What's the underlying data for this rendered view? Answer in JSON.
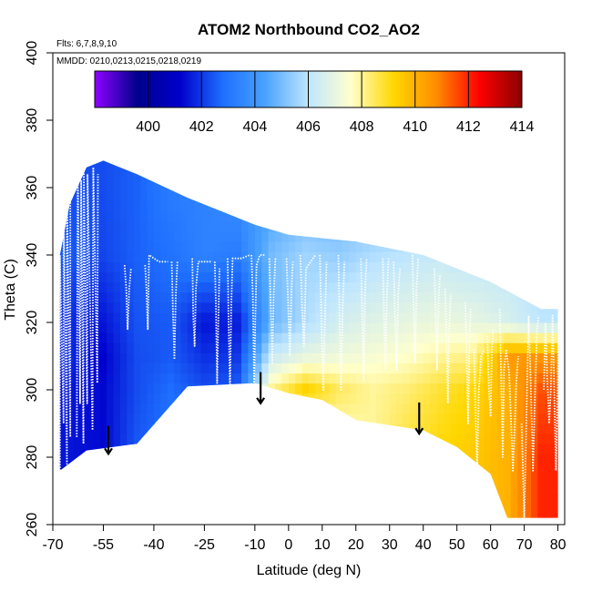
{
  "chart_data": {
    "type": "heatmap",
    "title": "ATOM2 Northbound CO2_AO2",
    "flights_label": "Flts: 6,7,8,9,10",
    "dates_label": "MMDD: 0210,0213,0215,0218,0219",
    "xlabel": "Latitude (deg N)",
    "ylabel": "Theta (C)",
    "xlim": [
      -70,
      82
    ],
    "ylim": [
      260,
      400
    ],
    "x_ticks": [
      -70,
      -55,
      -40,
      -25,
      -10,
      0,
      10,
      20,
      30,
      40,
      50,
      60,
      70,
      80
    ],
    "y_ticks": [
      260,
      280,
      300,
      320,
      340,
      360,
      380,
      400
    ],
    "colorbar": {
      "range": [
        398,
        414
      ],
      "ticks": [
        400,
        402,
        404,
        406,
        408,
        410,
        412,
        414
      ],
      "colors": [
        "#8f00ff",
        "#00008b",
        "#0000cd",
        "#1e6fff",
        "#4aa3ff",
        "#bfe6ff",
        "#ffffcc",
        "#ffd700",
        "#ff8c00",
        "#ff0000",
        "#8b0000"
      ]
    },
    "top_boundary": [
      [
        -67.9,
        340
      ],
      [
        -65,
        355
      ],
      [
        -60,
        366
      ],
      [
        -55,
        368
      ],
      [
        -45,
        364
      ],
      [
        -30,
        357
      ],
      [
        -10,
        349
      ],
      [
        0,
        346
      ],
      [
        20,
        344
      ],
      [
        40,
        340
      ],
      [
        60,
        332
      ],
      [
        75,
        324
      ],
      [
        80,
        324
      ]
    ],
    "bottom_boundary": [
      [
        -67.9,
        276
      ],
      [
        -60,
        282
      ],
      [
        -45,
        284
      ],
      [
        -30,
        301
      ],
      [
        -10,
        302
      ],
      [
        0,
        299
      ],
      [
        10,
        297
      ],
      [
        20,
        291
      ],
      [
        40,
        288
      ],
      [
        50,
        283
      ],
      [
        60,
        275
      ],
      [
        65,
        262
      ],
      [
        80,
        262
      ]
    ],
    "grid": [
      {
        "lat": -65,
        "z": [
          401.5,
          401.5,
          401.8,
          401.8,
          402.5,
          402.3
        ]
      },
      {
        "lat": -55,
        "z": [
          401.3,
          401.3,
          401.2,
          401.5,
          402.2,
          402.3
        ]
      },
      {
        "lat": -45,
        "z": [
          402.5,
          402.3,
          402.3,
          402.4,
          402.6,
          402.6
        ]
      },
      {
        "lat": -35,
        "z": [
          403.0,
          402.8,
          402.5,
          402.5,
          402.9,
          403.2
        ]
      },
      {
        "lat": -25,
        "z": [
          403.4,
          402.3,
          401.9,
          401.5,
          403.4,
          403.4
        ]
      },
      {
        "lat": -15,
        "z": [
          403.7,
          402.6,
          402.0,
          401.6,
          403.2,
          403.8
        ]
      },
      {
        "lat": -5,
        "z": [
          404.7,
          408.1,
          406.3,
          404.8,
          405.0,
          404.2
        ]
      },
      {
        "lat": 5,
        "z": [
          406.2,
          409.4,
          407.0,
          405.8,
          405.6,
          404.6
        ]
      },
      {
        "lat": 15,
        "z": [
          407.2,
          408.5,
          407.2,
          406.5,
          405.4,
          404.6
        ]
      },
      {
        "lat": 25,
        "z": [
          408.0,
          408.0,
          407.4,
          406.8,
          405.8,
          404.8
        ]
      },
      {
        "lat": 35,
        "z": [
          408.8,
          408.3,
          407.6,
          407.0,
          406.0,
          405.0
        ]
      },
      {
        "lat": 45,
        "z": [
          409.2,
          408.8,
          408.0,
          407.1,
          406.2,
          405.2
        ]
      },
      {
        "lat": 55,
        "z": [
          409.5,
          409.2,
          408.2,
          407.0,
          406.0,
          405.2
        ]
      },
      {
        "lat": 65,
        "z": [
          410.0,
          410.0,
          410.5,
          406.6,
          406.0,
          405.6
        ]
      },
      {
        "lat": 75,
        "z": [
          412.0,
          411.5,
          410.6,
          406.0,
          405.8,
          405.6
        ]
      }
    ],
    "theta_levels": [
      280,
      300,
      310,
      320,
      340,
      360
    ],
    "flight_tracks": [
      [
        [
          -67.9,
          276
        ],
        [
          -67.9,
          340
        ],
        [
          -66.8,
          290
        ],
        [
          -66.8,
          356
        ],
        [
          -65.8,
          278
        ],
        [
          -65.8,
          360
        ],
        [
          -64.8,
          286
        ],
        [
          -64.8,
          363
        ]
      ],
      [
        [
          -62.9,
          286
        ],
        [
          -62.6,
          366
        ],
        [
          -61.9,
          296
        ],
        [
          -61.6,
          362
        ],
        [
          -60.9,
          284
        ],
        [
          -60.8,
          366
        ],
        [
          -59.8,
          296
        ],
        [
          -59.7,
          364
        ],
        [
          -58.2,
          288
        ],
        [
          -58.0,
          366
        ],
        [
          -56.8,
          302
        ],
        [
          -56.6,
          364
        ]
      ],
      [
        [
          -48.7,
          337
        ],
        [
          -48.2,
          330
        ],
        [
          -47.8,
          318
        ],
        [
          -47.3,
          330
        ],
        [
          -46.8,
          336
        ]
      ],
      [
        [
          -42.6,
          337
        ],
        [
          -42.2,
          330
        ],
        [
          -41.8,
          318
        ],
        [
          -41.4,
          340
        ],
        [
          -38.5,
          338
        ],
        [
          -35.8,
          338
        ]
      ],
      [
        [
          -34.7,
          338
        ],
        [
          -34.3,
          322
        ],
        [
          -33.9,
          309
        ],
        [
          -33.5,
          328
        ],
        [
          -33.0,
          338
        ]
      ],
      [
        [
          -28.6,
          339
        ],
        [
          -28.3,
          322
        ],
        [
          -27.9,
          313
        ],
        [
          -27.5,
          330
        ],
        [
          -26.8,
          338
        ],
        [
          -24.6,
          338
        ],
        [
          -23.0,
          338
        ]
      ],
      [
        [
          -21.9,
          338
        ],
        [
          -21.6,
          326
        ],
        [
          -21.2,
          302
        ],
        [
          -20.9,
          318
        ],
        [
          -20.5,
          336
        ]
      ],
      [
        [
          -18.1,
          339
        ],
        [
          -17.8,
          320
        ],
        [
          -17.4,
          300
        ],
        [
          -17.0,
          326
        ],
        [
          -16.6,
          339
        ],
        [
          -14.0,
          339
        ],
        [
          -11.5,
          340
        ]
      ],
      [
        [
          -11.0,
          340
        ],
        [
          -10.6,
          328
        ],
        [
          -10.2,
          300
        ],
        [
          -9.9,
          320
        ],
        [
          -9.5,
          337
        ],
        [
          -8.5,
          340
        ],
        [
          -7.1,
          340
        ]
      ],
      [
        [
          -5.7,
          339
        ],
        [
          -5.2,
          322
        ],
        [
          -4.8,
          308
        ],
        [
          -4.4,
          328
        ],
        [
          -3.9,
          339
        ]
      ],
      [
        [
          -0.6,
          339
        ],
        [
          -0.1,
          325
        ],
        [
          0.4,
          310
        ],
        [
          0.9,
          330
        ],
        [
          1.3,
          338
        ]
      ],
      [
        [
          3.5,
          340
        ],
        [
          4.0,
          324
        ],
        [
          4.6,
          313
        ],
        [
          5.2,
          336
        ],
        [
          8.0,
          340
        ]
      ],
      [
        [
          9.3,
          340
        ],
        [
          9.8,
          318
        ],
        [
          10.3,
          300
        ],
        [
          10.8,
          320
        ],
        [
          11.3,
          338
        ]
      ],
      [
        [
          14.8,
          340
        ],
        [
          15.2,
          320
        ],
        [
          15.6,
          300
        ],
        [
          16.1,
          325
        ],
        [
          16.6,
          338
        ]
      ],
      [
        [
          21.5,
          339
        ],
        [
          21.9,
          320
        ],
        [
          22.3,
          303
        ],
        [
          22.7,
          328
        ],
        [
          23.2,
          339
        ]
      ],
      [
        [
          28.0,
          339
        ],
        [
          28.4,
          320
        ],
        [
          28.8,
          306
        ],
        [
          29.2,
          328
        ],
        [
          29.7,
          339
        ]
      ],
      [
        [
          31.2,
          338
        ],
        [
          31.6,
          322
        ],
        [
          32.1,
          306
        ],
        [
          32.6,
          329
        ],
        [
          33.1,
          336
        ]
      ],
      [
        [
          36.8,
          340
        ],
        [
          37.2,
          322
        ],
        [
          37.6,
          308
        ],
        [
          38.0,
          330
        ],
        [
          38.5,
          339
        ]
      ],
      [
        [
          43.3,
          336
        ],
        [
          43.7,
          322
        ],
        [
          44.1,
          306
        ],
        [
          44.6,
          328
        ],
        [
          45.0,
          334
        ]
      ],
      [
        [
          46.5,
          330
        ],
        [
          46.9,
          316
        ],
        [
          47.3,
          296
        ],
        [
          47.7,
          318
        ],
        [
          48.2,
          328
        ]
      ],
      [
        [
          52.5,
          326
        ],
        [
          52.9,
          310
        ],
        [
          53.3,
          290
        ],
        [
          53.7,
          314
        ],
        [
          54.1,
          324
        ]
      ],
      [
        [
          55.1,
          312
        ],
        [
          55.6,
          290
        ],
        [
          56.0,
          276
        ],
        [
          56.5,
          300
        ],
        [
          57.2,
          310
        ],
        [
          58.2,
          312
        ]
      ],
      [
        [
          59.0,
          316
        ],
        [
          59.5,
          300
        ],
        [
          60.0,
          292
        ],
        [
          60.4,
          312
        ],
        [
          60.8,
          318
        ]
      ],
      [
        [
          62.7,
          324
        ],
        [
          63.2,
          300
        ],
        [
          63.6,
          280
        ],
        [
          64.0,
          306
        ],
        [
          64.6,
          312
        ],
        [
          65.5,
          305
        ],
        [
          66.1,
          290
        ],
        [
          66.6,
          276
        ],
        [
          67.2,
          290
        ],
        [
          67.6,
          302
        ],
        [
          68.2,
          310
        ]
      ],
      [
        [
          69.2,
          290
        ],
        [
          69.6,
          276
        ],
        [
          70.0,
          262
        ],
        [
          70.4,
          280
        ],
        [
          70.8,
          300
        ],
        [
          71.3,
          322
        ],
        [
          72.0,
          300
        ],
        [
          72.6,
          276
        ],
        [
          73.2,
          300
        ],
        [
          73.8,
          318
        ],
        [
          74.3,
          322
        ]
      ],
      [
        [
          75.8,
          300
        ],
        [
          76.3,
          320
        ],
        [
          76.8,
          304
        ],
        [
          77.4,
          290
        ],
        [
          77.9,
          300
        ],
        [
          78.4,
          322
        ],
        [
          78.9,
          300
        ],
        [
          79.4,
          276
        ],
        [
          79.9,
          300
        ],
        [
          80.2,
          323
        ],
        [
          80.5,
          310
        ],
        [
          80.8,
          286
        ],
        [
          81.0,
          300
        ],
        [
          81.2,
          320
        ]
      ]
    ],
    "arrows": [
      {
        "lat": -53.5,
        "theta_top": 286,
        "theta_bottom": 281
      },
      {
        "lat": -8.3,
        "theta_top": 302,
        "theta_bottom": 296
      },
      {
        "lat": 38.8,
        "theta_top": 293,
        "theta_bottom": 287
      }
    ]
  }
}
